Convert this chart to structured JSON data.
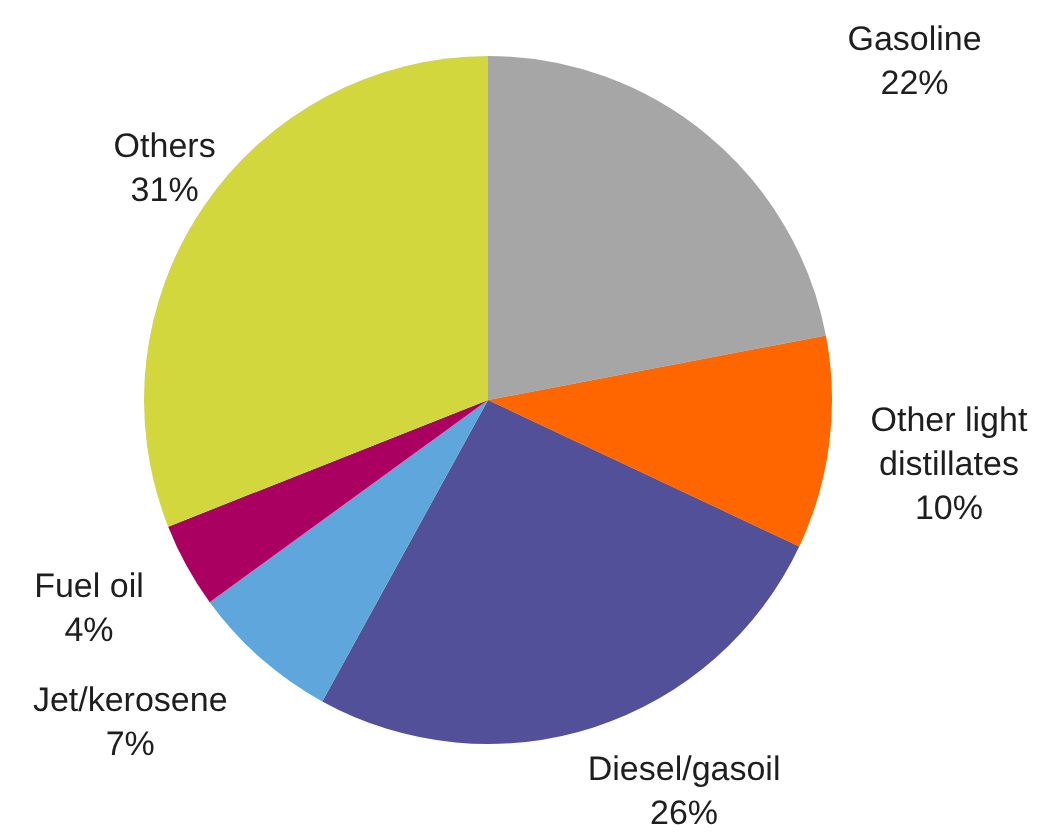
{
  "chart_data": {
    "type": "pie",
    "categories": [
      "Gasoline",
      "Other light distillates",
      "Diesel/gasoil",
      "Jet/kerosene",
      "Fuel oil",
      "Others"
    ],
    "values": [
      22,
      10,
      26,
      7,
      4,
      31
    ],
    "colors": [
      "#a6a6a6",
      "#ff6600",
      "#53509a",
      "#5fa6dc",
      "#aa0061",
      "#d2d73d"
    ],
    "value_labels": [
      "22%",
      "10%",
      "26%",
      "7%",
      "4%",
      "31%"
    ]
  }
}
